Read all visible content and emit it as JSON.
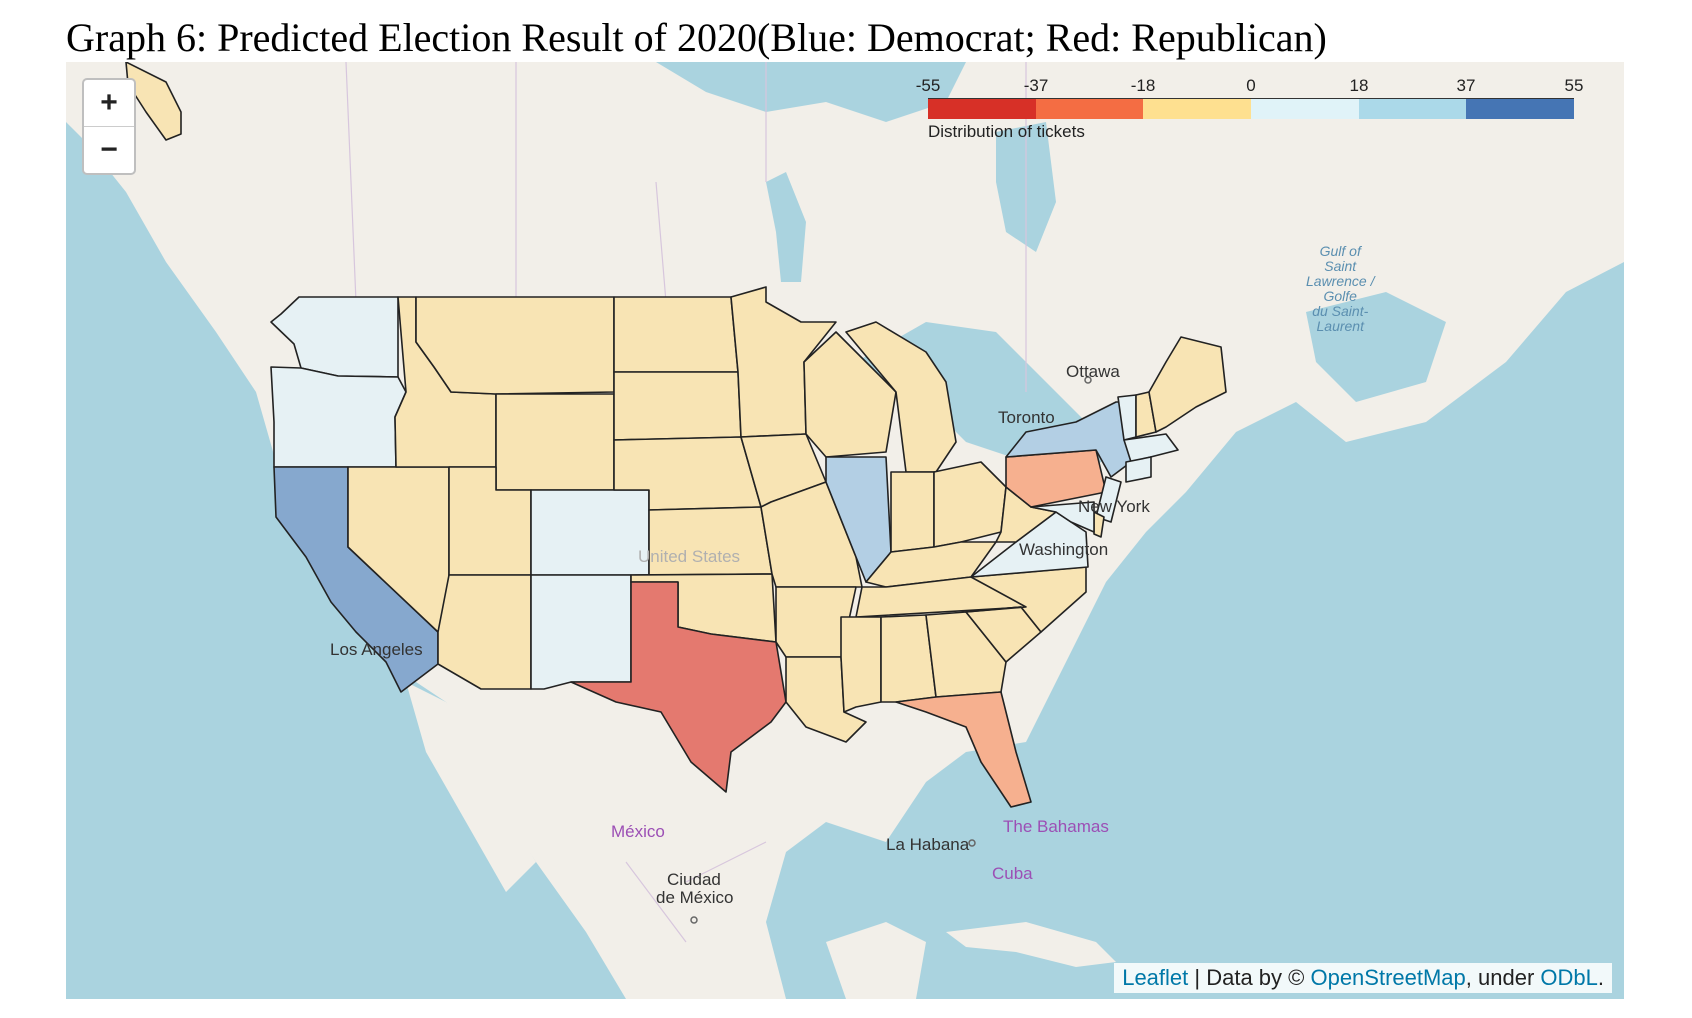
{
  "title": "Graph 6: Predicted Election Result of 2020(Blue: Democrat; Red: Republican)",
  "zoom": {
    "in_label": "+",
    "out_label": "−"
  },
  "legend": {
    "ticks": [
      "-55",
      "-37",
      "-18",
      "0",
      "18",
      "37",
      "55"
    ],
    "colors": [
      "#d73027",
      "#f46d43",
      "#fee090",
      "#e0f3f8",
      "#abd9e9",
      "#4575b4"
    ],
    "caption": "Distribution of tickets"
  },
  "palette": {
    "strong_rep": "#e4796f",
    "lean_rep": "#f6b08f",
    "weak_rep": "#f8e4b4",
    "weak_dem": "#e6f1f4",
    "lean_dem": "#b3cfe4",
    "strong_dem": "#86a8ce",
    "land": "#f2efe9",
    "water": "#aad3df"
  },
  "states": [
    {
      "name": "WA",
      "class": "weak_dem"
    },
    {
      "name": "OR",
      "class": "weak_dem"
    },
    {
      "name": "CA",
      "class": "strong_dem"
    },
    {
      "name": "NV",
      "class": "weak_rep"
    },
    {
      "name": "ID",
      "class": "weak_rep"
    },
    {
      "name": "MT",
      "class": "weak_rep"
    },
    {
      "name": "WY",
      "class": "weak_rep"
    },
    {
      "name": "UT",
      "class": "weak_rep"
    },
    {
      "name": "AZ",
      "class": "weak_rep"
    },
    {
      "name": "CO",
      "class": "weak_dem"
    },
    {
      "name": "NM",
      "class": "weak_dem"
    },
    {
      "name": "ND",
      "class": "weak_rep"
    },
    {
      "name": "SD",
      "class": "weak_rep"
    },
    {
      "name": "NE",
      "class": "weak_rep"
    },
    {
      "name": "KS",
      "class": "weak_rep"
    },
    {
      "name": "OK",
      "class": "weak_rep"
    },
    {
      "name": "TX",
      "class": "strong_rep"
    },
    {
      "name": "MN",
      "class": "weak_rep"
    },
    {
      "name": "IA",
      "class": "weak_rep"
    },
    {
      "name": "MO",
      "class": "weak_rep"
    },
    {
      "name": "AR",
      "class": "weak_rep"
    },
    {
      "name": "LA",
      "class": "weak_rep"
    },
    {
      "name": "WI",
      "class": "weak_rep"
    },
    {
      "name": "IL",
      "class": "lean_dem"
    },
    {
      "name": "MI",
      "class": "weak_rep"
    },
    {
      "name": "IN",
      "class": "weak_rep"
    },
    {
      "name": "OH",
      "class": "weak_rep"
    },
    {
      "name": "KY",
      "class": "weak_rep"
    },
    {
      "name": "TN",
      "class": "weak_rep"
    },
    {
      "name": "MS",
      "class": "weak_rep"
    },
    {
      "name": "AL",
      "class": "weak_rep"
    },
    {
      "name": "GA",
      "class": "weak_rep"
    },
    {
      "name": "FL",
      "class": "lean_rep"
    },
    {
      "name": "SC",
      "class": "weak_rep"
    },
    {
      "name": "NC",
      "class": "weak_rep"
    },
    {
      "name": "VA",
      "class": "weak_dem"
    },
    {
      "name": "WV",
      "class": "weak_rep"
    },
    {
      "name": "PA",
      "class": "lean_rep"
    },
    {
      "name": "NY",
      "class": "lean_dem"
    },
    {
      "name": "VT",
      "class": "weak_dem"
    },
    {
      "name": "NH",
      "class": "weak_rep"
    },
    {
      "name": "ME",
      "class": "weak_rep"
    },
    {
      "name": "MA",
      "class": "weak_dem"
    },
    {
      "name": "CT",
      "class": "weak_dem"
    },
    {
      "name": "NJ",
      "class": "weak_dem"
    },
    {
      "name": "MD",
      "class": "weak_dem"
    },
    {
      "name": "DE",
      "class": "weak_rep"
    },
    {
      "name": "AK",
      "class": "weak_rep"
    }
  ],
  "places": {
    "ottawa": "Ottawa",
    "toronto": "Toronto",
    "new_york": "New York",
    "washington": "Washington",
    "united_states": "United States",
    "los_angeles": "Los Angeles",
    "mexico": "México",
    "ciudad_mexico_1": "Ciudad",
    "ciudad_mexico_2": "de México",
    "la_habana": "La Habana",
    "cuba": "Cuba",
    "bahamas": "The Bahamas",
    "gulf_1": "Gulf of",
    "gulf_2": "Saint",
    "gulf_3": "Lawrence /",
    "gulf_4": "Golfe",
    "gulf_5": "du Saint-",
    "gulf_6": "Laurent"
  },
  "attribution": {
    "leaflet": "Leaflet",
    "sep": " | Data by © ",
    "osm": "OpenStreetMap",
    "under": ", under ",
    "odbl": "ODbL",
    "end": "."
  }
}
